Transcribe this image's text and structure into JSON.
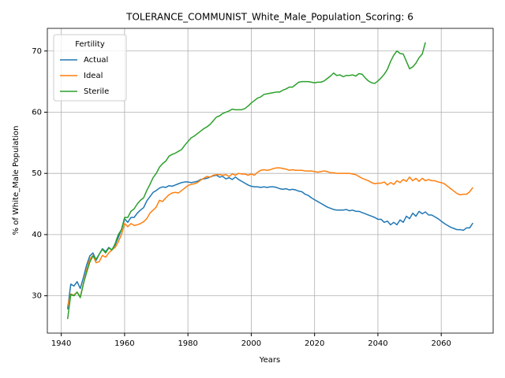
{
  "chart_data": {
    "type": "line",
    "title": "TOLERANCE_COMMUNIST_White_Male_Population_Scoring: 6",
    "xlabel": "Years",
    "ylabel": "% of White_Male Population",
    "legend_title": "Fertility",
    "legend": "upper left",
    "grid": true,
    "xlim": [
      1935.6,
      2076.4
    ],
    "ylim": [
      23.9,
      73.7
    ],
    "xticks": [
      1940,
      1960,
      1980,
      2000,
      2020,
      2040,
      2060
    ],
    "yticks": [
      30,
      40,
      50,
      60,
      70
    ],
    "x": [
      1942,
      1943,
      1944,
      1945,
      1946,
      1947,
      1948,
      1949,
      1950,
      1951,
      1952,
      1953,
      1954,
      1955,
      1956,
      1957,
      1958,
      1959,
      1960,
      1961,
      1962,
      1963,
      1964,
      1965,
      1966,
      1967,
      1968,
      1969,
      1970,
      1971,
      1972,
      1973,
      1974,
      1975,
      1976,
      1977,
      1978,
      1979,
      1980,
      1981,
      1982,
      1983,
      1984,
      1985,
      1986,
      1987,
      1988,
      1989,
      1990,
      1991,
      1992,
      1993,
      1994,
      1995,
      1996,
      1997,
      1998,
      1999,
      2000,
      2001,
      2002,
      2003,
      2004,
      2005,
      2006,
      2007,
      2008,
      2009,
      2010,
      2011,
      2012,
      2013,
      2014,
      2015,
      2016,
      2017,
      2018,
      2019,
      2020,
      2021,
      2022,
      2023,
      2024,
      2025,
      2026,
      2027,
      2028,
      2029,
      2030,
      2031,
      2032,
      2033,
      2034,
      2035,
      2036,
      2037,
      2038,
      2039,
      2040,
      2041,
      2042,
      2043,
      2044,
      2045,
      2046,
      2047,
      2048,
      2049,
      2050,
      2051,
      2052,
      2053,
      2054,
      2055,
      2056,
      2057,
      2058,
      2059,
      2060,
      2061,
      2062,
      2063,
      2064,
      2065,
      2066,
      2067,
      2068,
      2069,
      2070
    ],
    "series": [
      {
        "name": "Actual",
        "color": "#1f77b4",
        "values": [
          27.8,
          31.9,
          31.6,
          32.3,
          31.2,
          33.0,
          35.0,
          36.5,
          37.0,
          35.8,
          36.8,
          37.7,
          37.2,
          37.9,
          37.5,
          38.3,
          39.5,
          40.8,
          42.6,
          42.0,
          42.8,
          42.8,
          43.5,
          44.0,
          44.4,
          45.5,
          46.2,
          46.9,
          47.2,
          47.6,
          47.8,
          47.7,
          48.0,
          47.9,
          48.1,
          48.3,
          48.5,
          48.6,
          48.6,
          48.5,
          48.6,
          48.7,
          49.0,
          49.1,
          49.2,
          49.4,
          49.6,
          49.7,
          49.4,
          49.5,
          49.1,
          49.3,
          49.0,
          49.4,
          49.0,
          48.7,
          48.4,
          48.1,
          47.9,
          47.8,
          47.8,
          47.7,
          47.8,
          47.7,
          47.8,
          47.8,
          47.7,
          47.5,
          47.4,
          47.5,
          47.3,
          47.4,
          47.3,
          47.1,
          47.0,
          46.6,
          46.4,
          46.0,
          45.7,
          45.4,
          45.1,
          44.8,
          44.5,
          44.3,
          44.1,
          44.0,
          44.0,
          44.0,
          44.1,
          43.9,
          44.0,
          43.8,
          43.8,
          43.6,
          43.4,
          43.2,
          43.0,
          42.8,
          42.5,
          42.5,
          42.0,
          42.2,
          41.6,
          42.0,
          41.6,
          42.4,
          42.0,
          43.0,
          42.6,
          43.5,
          43.0,
          43.8,
          43.4,
          43.7,
          43.2,
          43.2,
          42.9,
          42.6,
          42.2,
          41.8,
          41.5,
          41.2,
          41.0,
          40.8,
          40.8,
          40.7,
          41.1,
          41.1,
          41.9
        ]
      },
      {
        "name": "Ideal",
        "color": "#ff7f0e",
        "values": [
          28.3,
          30.3,
          30.1,
          30.6,
          29.8,
          32.0,
          34.2,
          36.0,
          36.6,
          35.4,
          35.6,
          36.6,
          36.3,
          37.0,
          37.5,
          37.9,
          38.8,
          40.0,
          41.8,
          41.3,
          41.8,
          41.5,
          41.6,
          41.8,
          42.1,
          42.6,
          43.5,
          44.0,
          44.5,
          45.6,
          45.4,
          46.0,
          46.5,
          46.8,
          46.9,
          46.8,
          47.2,
          47.6,
          48.0,
          48.2,
          48.3,
          48.5,
          48.9,
          49.2,
          49.5,
          49.4,
          49.7,
          49.8,
          49.8,
          49.7,
          49.8,
          49.5,
          49.9,
          49.7,
          50.0,
          49.9,
          49.9,
          49.7,
          49.9,
          49.7,
          50.2,
          50.5,
          50.6,
          50.5,
          50.6,
          50.8,
          50.9,
          50.9,
          50.8,
          50.7,
          50.5,
          50.6,
          50.5,
          50.5,
          50.5,
          50.4,
          50.4,
          50.4,
          50.3,
          50.2,
          50.3,
          50.4,
          50.3,
          50.1,
          50.1,
          50.0,
          50.0,
          50.0,
          50.0,
          50.0,
          49.9,
          49.8,
          49.5,
          49.2,
          49.0,
          48.8,
          48.5,
          48.3,
          48.4,
          48.4,
          48.6,
          48.1,
          48.5,
          48.2,
          48.8,
          48.5,
          49.0,
          48.7,
          49.4,
          48.8,
          49.2,
          48.7,
          49.2,
          48.8,
          49.0,
          48.8,
          48.8,
          48.6,
          48.5,
          48.3,
          47.9,
          47.5,
          47.1,
          46.7,
          46.5,
          46.6,
          46.6,
          47.0,
          47.7
        ]
      },
      {
        "name": "Sterile",
        "color": "#2ca02c",
        "values": [
          26.2,
          30.2,
          30.0,
          30.6,
          29.7,
          32.0,
          33.8,
          35.5,
          36.5,
          36.0,
          36.8,
          37.6,
          37.0,
          37.8,
          37.5,
          38.5,
          40.0,
          40.8,
          42.8,
          42.8,
          43.8,
          44.2,
          45.0,
          45.6,
          46.0,
          47.2,
          48.2,
          49.3,
          50.0,
          51.0,
          51.6,
          52.0,
          52.8,
          53.1,
          53.3,
          53.6,
          53.9,
          54.6,
          55.2,
          55.8,
          56.1,
          56.5,
          56.9,
          57.3,
          57.6,
          58.0,
          58.6,
          59.2,
          59.4,
          59.8,
          60.0,
          60.2,
          60.5,
          60.4,
          60.4,
          60.4,
          60.6,
          61.0,
          61.5,
          61.9,
          62.3,
          62.5,
          62.9,
          63.0,
          63.1,
          63.2,
          63.3,
          63.3,
          63.6,
          63.8,
          64.1,
          64.1,
          64.5,
          64.9,
          65.0,
          65.0,
          65.0,
          64.9,
          64.8,
          64.9,
          64.9,
          65.1,
          65.5,
          65.9,
          66.4,
          66.0,
          66.1,
          65.8,
          66.0,
          66.0,
          66.1,
          65.9,
          66.3,
          66.2,
          65.6,
          65.1,
          64.8,
          64.7,
          65.1,
          65.6,
          66.2,
          67.0,
          68.3,
          69.3,
          70.0,
          69.6,
          69.5,
          68.3,
          67.1,
          67.4,
          68.0,
          68.9,
          69.5,
          71.4,
          null,
          null,
          null,
          null,
          null,
          null,
          null,
          null,
          null,
          null,
          null,
          null,
          null,
          null,
          null
        ]
      }
    ]
  }
}
